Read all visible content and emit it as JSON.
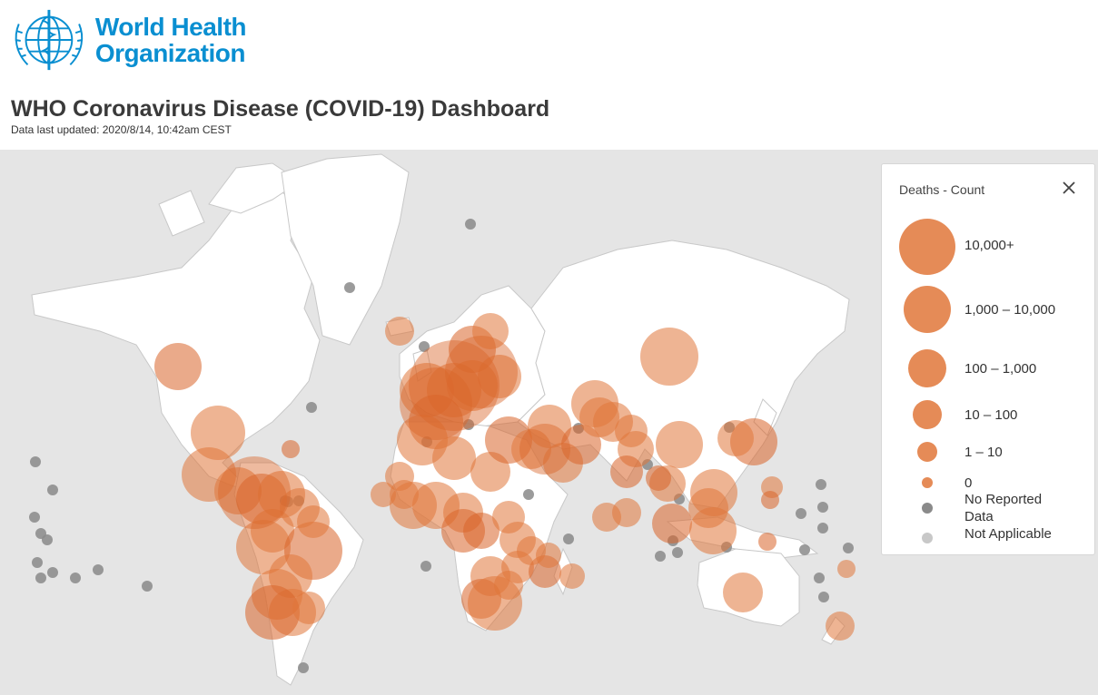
{
  "logo": {
    "line1": "World Health",
    "line2": "Organization"
  },
  "page": {
    "title": "WHO Coronavirus Disease (COVID-19) Dashboard",
    "last_updated": "Data last updated: 2020/8/14, 10:42am CEST"
  },
  "colors": {
    "bubble": "#e0773a",
    "bubble_dense": "#d9652a",
    "no_data": "#8a8a8a",
    "not_applicable": "#c8c8c8",
    "ocean": "#e5e5e5",
    "land": "#ffffff",
    "logo_blue": "#0a8fd1"
  },
  "legend": {
    "title": "Deaths - Count",
    "close_icon": "close-icon",
    "items": [
      {
        "label": "10,000+",
        "kind": "bubble"
      },
      {
        "label": "1,000 – 10,000",
        "kind": "bubble"
      },
      {
        "label": "100 – 1,000",
        "kind": "bubble"
      },
      {
        "label": "10 – 100",
        "kind": "bubble"
      },
      {
        "label": "1 – 10",
        "kind": "bubble"
      },
      {
        "label": "0",
        "kind": "bubble"
      },
      {
        "label": "No Reported Data",
        "kind": "no-data"
      },
      {
        "label": "Not Applicable",
        "kind": "not-applicable"
      }
    ]
  }
}
